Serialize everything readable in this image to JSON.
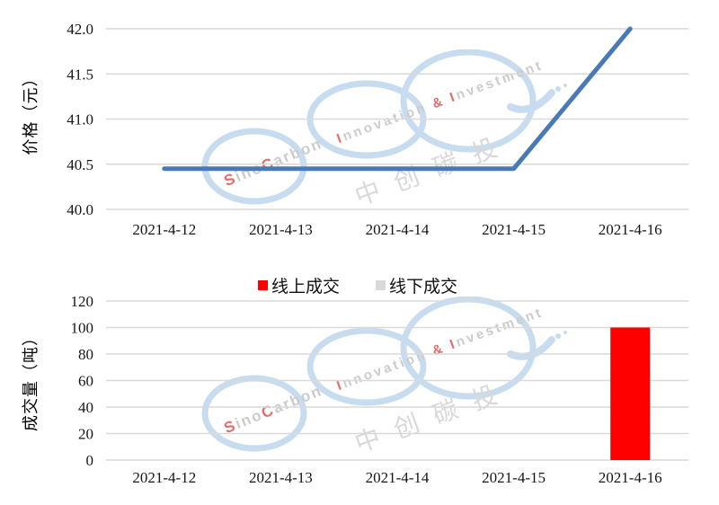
{
  "chart_data": [
    {
      "type": "line",
      "title": "",
      "ylabel": "价格（元）",
      "xlabel": "",
      "categories": [
        "2021-4-12",
        "2021-4-13",
        "2021-4-14",
        "2021-4-15",
        "2021-4-16"
      ],
      "series": [
        {
          "name": "价格",
          "color": "#4a79b8",
          "values": [
            40.45,
            40.45,
            40.45,
            40.45,
            42.0
          ]
        }
      ],
      "ylim": [
        40.0,
        42.0
      ],
      "ytick_step": 0.5,
      "ytick_labels": [
        "40.0",
        "40.5",
        "41.0",
        "41.5",
        "42.0"
      ],
      "grid": true,
      "legend_position": "none"
    },
    {
      "type": "bar",
      "title": "",
      "ylabel": "成交量（吨）",
      "xlabel": "",
      "categories": [
        "2021-4-12",
        "2021-4-13",
        "2021-4-14",
        "2021-4-15",
        "2021-4-16"
      ],
      "series": [
        {
          "name": "线上成交",
          "color": "#ff0000",
          "values": [
            0,
            0,
            0,
            0,
            100
          ]
        },
        {
          "name": "线下成交",
          "color": "#d9d9d9",
          "values": [
            0,
            0,
            0,
            0,
            0
          ]
        }
      ],
      "bar_mode": "stacked",
      "ylim": [
        0,
        120
      ],
      "ytick_step": 20,
      "ytick_labels": [
        "0",
        "20",
        "40",
        "60",
        "80",
        "100",
        "120"
      ],
      "grid": true,
      "legend_position": "top"
    }
  ],
  "style": {
    "gridline_color": "#d9d9d9",
    "line_color": "#4a79b8",
    "bar_color": "#ff0000",
    "offline_color": "#d9d9d9"
  },
  "watermark": {
    "ring_color": "#c7dcee",
    "gray": "#cccccc",
    "red": "#e36c6c",
    "cn_color": "#d9d9d9",
    "line1": [
      {
        "t": "S",
        "r": 1
      },
      {
        "t": "ino",
        "r": 0
      },
      {
        "t": "C",
        "r": 1
      },
      {
        "t": "arbon",
        "r": 0
      }
    ],
    "line2": [
      {
        "t": "I",
        "r": 1
      },
      {
        "t": "nnovation",
        "r": 0
      },
      {
        "t": " & ",
        "r": 1
      },
      {
        "t": "I",
        "r": 1
      },
      {
        "t": "nvestment",
        "r": 0
      }
    ],
    "line3": "中创碳投"
  }
}
